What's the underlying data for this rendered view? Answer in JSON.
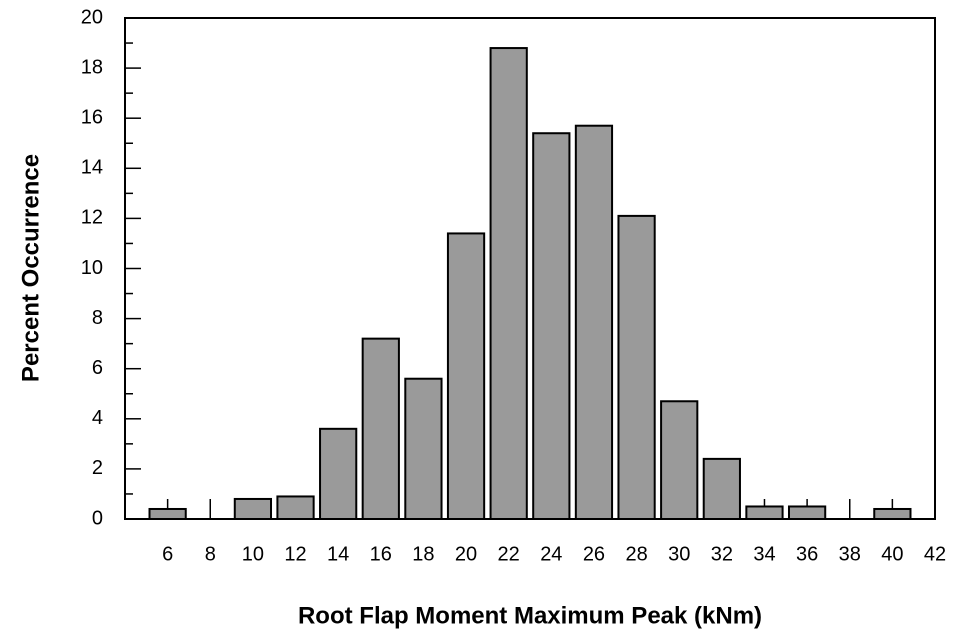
{
  "chart_data": {
    "type": "bar",
    "x_label": "Root Flap Moment Maximum Peak (kNm)",
    "y_label": "Percent Occurrence",
    "x": [
      6,
      8,
      10,
      12,
      14,
      16,
      18,
      20,
      22,
      24,
      26,
      28,
      30,
      32,
      34,
      36,
      38,
      40
    ],
    "values": [
      0.4,
      0,
      0.8,
      0.9,
      3.6,
      7.2,
      5.6,
      11.4,
      18.8,
      15.4,
      15.7,
      12.1,
      4.7,
      2.4,
      0.5,
      0.5,
      0,
      0.4
    ],
    "color": "#9a9a9a",
    "xlim": [
      4,
      42
    ],
    "xticks": [
      6,
      8,
      10,
      12,
      14,
      16,
      18,
      20,
      22,
      24,
      26,
      28,
      30,
      32,
      34,
      36,
      38,
      40,
      42
    ],
    "ylim": [
      0,
      20
    ],
    "yticks": [
      0,
      2,
      4,
      6,
      8,
      10,
      12,
      14,
      16,
      18,
      20
    ],
    "y_minor_ticks": [
      1,
      3,
      5,
      7,
      9,
      11,
      13,
      15,
      17,
      19
    ],
    "grid": false
  }
}
